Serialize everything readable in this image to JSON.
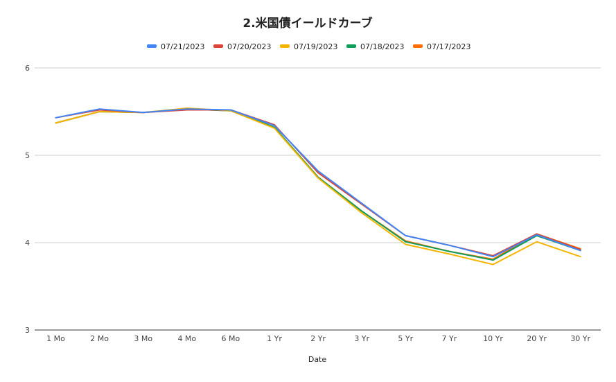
{
  "chart_data": {
    "type": "line",
    "title": "2.米国債イールドカーブ",
    "xlabel": "Date",
    "ylabel": "",
    "ylim": [
      3,
      6
    ],
    "yticks": [
      3,
      4,
      5,
      6
    ],
    "grid": true,
    "legend_position": "top",
    "categories": [
      "1 Mo",
      "2 Mo",
      "3 Mo",
      "4 Mo",
      "6 Mo",
      "1 Yr",
      "2 Yr",
      "3 Yr",
      "5 Yr",
      "7 Yr",
      "10 Yr",
      "20 Yr",
      "30 Yr"
    ],
    "series": [
      {
        "name": "07/21/2023",
        "color": "#4285f4",
        "values": [
          5.43,
          5.53,
          5.49,
          5.53,
          5.52,
          5.34,
          4.82,
          4.45,
          4.08,
          3.97,
          3.84,
          4.09,
          3.91
        ]
      },
      {
        "name": "07/20/2023",
        "color": "#db4437",
        "values": [
          5.43,
          5.52,
          5.49,
          5.52,
          5.52,
          5.35,
          4.8,
          4.44,
          4.08,
          3.97,
          3.85,
          4.1,
          3.92
        ]
      },
      {
        "name": "07/19/2023",
        "color": "#f4b400",
        "values": [
          5.37,
          5.5,
          5.49,
          5.54,
          5.51,
          5.31,
          4.74,
          4.34,
          3.98,
          3.87,
          3.75,
          4.01,
          3.84
        ]
      },
      {
        "name": "07/18/2023",
        "color": "#0f9d58",
        "values": [
          5.37,
          5.5,
          5.49,
          5.53,
          5.51,
          5.32,
          4.75,
          4.36,
          4.01,
          3.9,
          3.8,
          4.08,
          3.91
        ]
      },
      {
        "name": "07/17/2023",
        "color": "#ff6d01",
        "values": [
          5.37,
          5.5,
          5.49,
          5.53,
          5.51,
          5.32,
          4.75,
          4.36,
          4.02,
          3.9,
          3.81,
          4.1,
          3.93
        ]
      }
    ]
  }
}
